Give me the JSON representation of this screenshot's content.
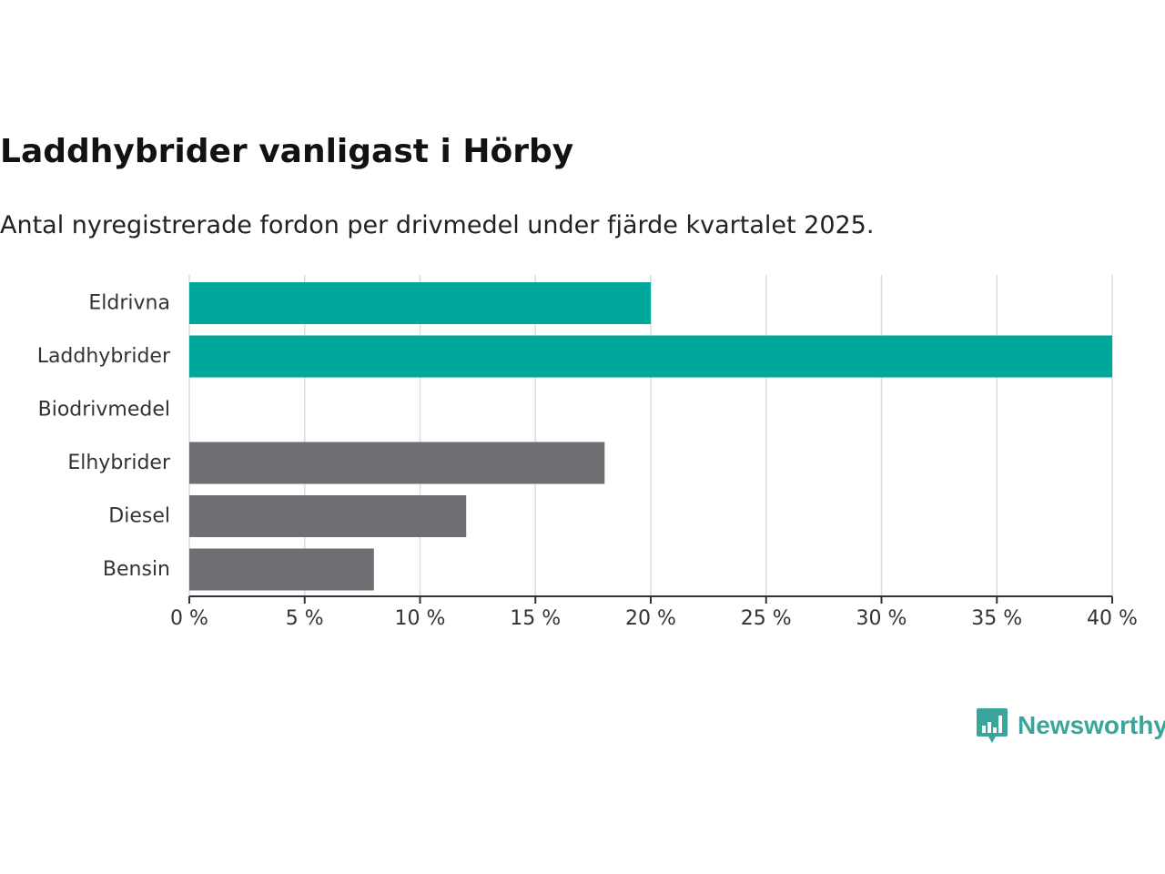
{
  "chart_data": {
    "type": "bar",
    "orientation": "horizontal",
    "title": "Laddhybrider vanligast i Hörby",
    "subtitle": "Antal nyregistrerade fordon per drivmedel under fjärde kvartalet 2025.",
    "categories": [
      "Eldrivna",
      "Laddhybrider",
      "Biodrivmedel",
      "Elhybrider",
      "Diesel",
      "Bensin"
    ],
    "values": [
      20,
      40,
      0,
      18,
      12,
      8
    ],
    "colors": [
      "#00a79b",
      "#00a79b",
      "#00a79b",
      "#6e6e73",
      "#6e6e73",
      "#6e6e73"
    ],
    "xlim": [
      0,
      40
    ],
    "xticks": [
      0,
      5,
      10,
      15,
      20,
      25,
      30,
      35,
      40
    ],
    "xtick_labels": [
      "0 %",
      "5 %",
      "10 %",
      "15 %",
      "20 %",
      "25 %",
      "30 %",
      "35 %",
      "40 %"
    ],
    "grid": true,
    "unit": "%"
  },
  "brand": {
    "name": "Newsworthy",
    "logo_icon": "bar-chart-speech-bubble-icon",
    "color": "#3aa69b"
  }
}
